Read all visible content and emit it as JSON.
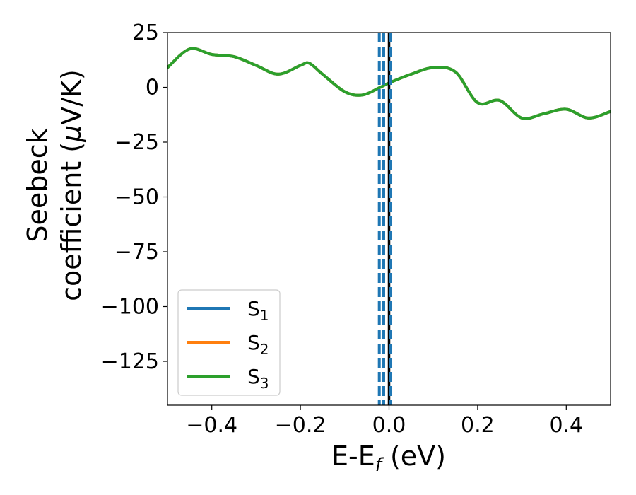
{
  "chart_data": {
    "type": "line",
    "xlabel": "E-E",
    "xlabel_sub": "f",
    "xlabel_unit": " (eV)",
    "ylabel_line1": "Seebeck",
    "ylabel_line2_prefix": "coefficient  (",
    "ylabel_mu": "μ",
    "ylabel_line2_suffix": "V/K)",
    "xlim": [
      -0.5,
      0.5
    ],
    "ylim": [
      -145,
      25
    ],
    "xticks": [
      -0.4,
      -0.2,
      0.0,
      0.2,
      0.4
    ],
    "xtick_labels": [
      "−0.4",
      "−0.2",
      "0.0",
      "0.2",
      "0.4"
    ],
    "yticks": [
      25,
      0,
      -25,
      -50,
      -75,
      -100,
      -125
    ],
    "ytick_labels": [
      "25",
      "0",
      "−25",
      "−50",
      "−75",
      "−100",
      "−125"
    ],
    "grid": false,
    "legend_placement": "lower-left",
    "series": [
      {
        "name": "S",
        "sub": "1",
        "color": "#1f77b4",
        "x": [
          -0.5,
          -0.45,
          -0.4,
          -0.35,
          -0.3,
          -0.25,
          -0.2,
          -0.18,
          -0.15,
          -0.1,
          -0.06,
          -0.02,
          0.0,
          0.05,
          0.1,
          0.15,
          0.2,
          0.25,
          0.3,
          0.35,
          0.4,
          0.45,
          0.5
        ],
        "y": [
          9,
          17.5,
          15,
          14,
          10,
          6,
          10,
          11,
          6,
          -2,
          -3.5,
          0,
          2,
          6,
          9,
          7,
          -7,
          -6,
          -14,
          -12,
          -10,
          -14,
          -11
        ]
      },
      {
        "name": "S",
        "sub": "2",
        "color": "#ff7f0e",
        "x": [
          -0.5,
          -0.45,
          -0.4,
          -0.35,
          -0.3,
          -0.25,
          -0.2,
          -0.18,
          -0.15,
          -0.1,
          -0.06,
          -0.02,
          0.0,
          0.05,
          0.1,
          0.15,
          0.2,
          0.25,
          0.3,
          0.35,
          0.4,
          0.45,
          0.5
        ],
        "y": [
          9,
          17.5,
          15,
          14,
          10,
          6,
          10,
          11,
          6,
          -2,
          -3.5,
          0,
          2,
          6,
          9,
          7,
          -7,
          -6,
          -14,
          -12,
          -10,
          -14,
          -11
        ]
      },
      {
        "name": "S",
        "sub": "3",
        "color": "#2ca02c",
        "x": [
          -0.5,
          -0.45,
          -0.4,
          -0.35,
          -0.3,
          -0.25,
          -0.2,
          -0.18,
          -0.15,
          -0.1,
          -0.06,
          -0.02,
          0.0,
          0.05,
          0.1,
          0.15,
          0.2,
          0.25,
          0.3,
          0.35,
          0.4,
          0.45,
          0.5
        ],
        "y": [
          9,
          17.5,
          15,
          14,
          10,
          6,
          10,
          11,
          6,
          -2,
          -3.5,
          0,
          2,
          6,
          9,
          7,
          -7,
          -6,
          -14,
          -12,
          -10,
          -14,
          -11
        ]
      }
    ],
    "vlines": [
      {
        "x": -0.022,
        "style": "dashed",
        "color": "#1f77b4"
      },
      {
        "x": -0.012,
        "style": "dashed",
        "color": "#1f77b4"
      },
      {
        "x": 0.0,
        "style": "solid",
        "color": "#000000"
      },
      {
        "x": 0.004,
        "style": "dashed",
        "color": "#1f77b4"
      }
    ]
  }
}
